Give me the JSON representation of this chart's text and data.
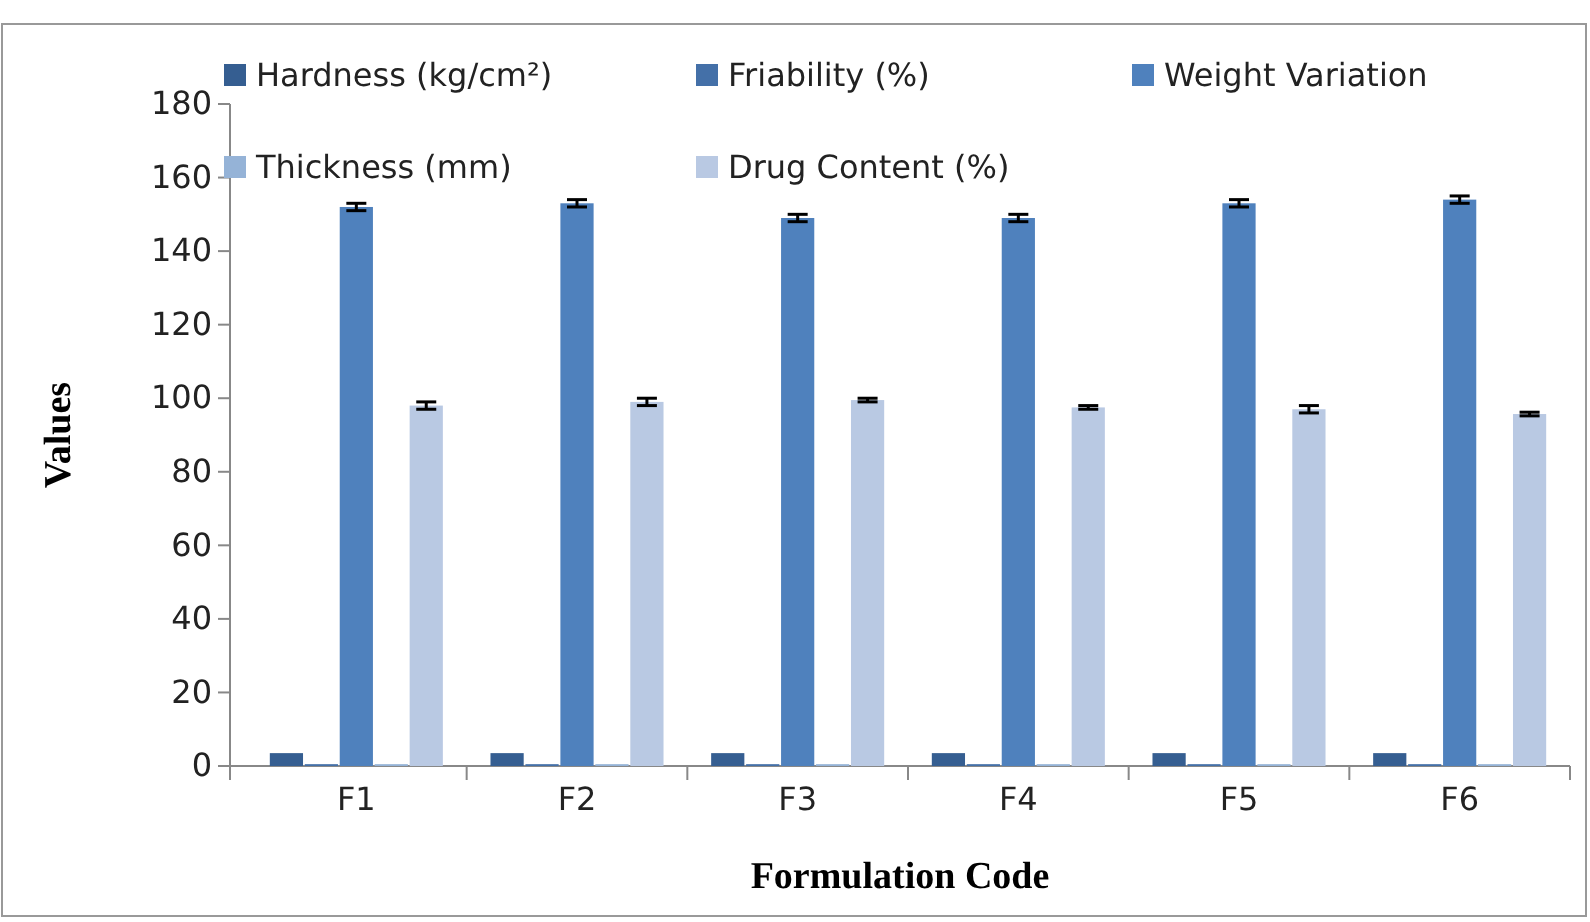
{
  "chart_data": {
    "type": "bar",
    "xlabel": "Formulation Code",
    "ylabel": "Values",
    "categories": [
      "F1",
      "F2",
      "F3",
      "F4",
      "F5",
      "F6"
    ],
    "series": [
      {
        "name": "Hardness (kg/cm²)",
        "color": "#355e91",
        "values": [
          3.5,
          3.5,
          3.5,
          3.5,
          3.5,
          3.5
        ]
      },
      {
        "name": "Friability (%)",
        "color": "#4470a8",
        "values": [
          0.5,
          0.5,
          0.5,
          0.5,
          0.5,
          0.5
        ]
      },
      {
        "name": "Weight Variation",
        "color": "#4f81bd",
        "values": [
          152,
          153,
          149,
          149,
          153,
          154
        ],
        "errors": [
          1,
          1,
          1,
          1,
          1,
          1
        ]
      },
      {
        "name": "Thickness (mm)",
        "color": "#95b3d7",
        "values": [
          0.5,
          0.5,
          0.5,
          0.5,
          0.5,
          0.5
        ]
      },
      {
        "name": "Drug Content (%)",
        "color": "#b9c9e3",
        "values": [
          98,
          99,
          99.5,
          97.5,
          97,
          95.7
        ],
        "errors": [
          1,
          1,
          0.5,
          0.5,
          1,
          0.5
        ]
      }
    ],
    "ylim": [
      0,
      180
    ],
    "yticks": [
      0,
      20,
      40,
      60,
      80,
      100,
      120,
      140,
      160,
      180
    ],
    "grid": false,
    "legend": "top"
  }
}
